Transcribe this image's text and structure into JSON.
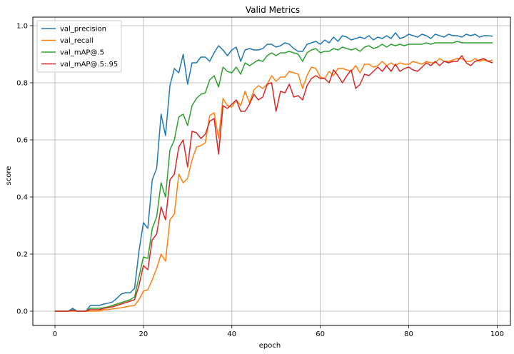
{
  "chart_data": {
    "type": "line",
    "title": "Valid Metrics",
    "xlabel": "epoch",
    "ylabel": "score",
    "xlim": [
      -5,
      103
    ],
    "ylim": [
      -0.05,
      1.03
    ],
    "grid": true,
    "legend_position": "top-left",
    "xticks": [
      0,
      20,
      40,
      60,
      80,
      100
    ],
    "xtick_labels": [
      "0",
      "20",
      "40",
      "60",
      "80",
      "100"
    ],
    "yticks": [
      0.0,
      0.2,
      0.4,
      0.6,
      0.8,
      1.0
    ],
    "ytick_labels": [
      "0.0",
      "0.2",
      "0.4",
      "0.6",
      "0.8",
      "1.0"
    ],
    "x": [
      0,
      1,
      2,
      3,
      4,
      5,
      6,
      7,
      8,
      9,
      10,
      11,
      12,
      13,
      14,
      15,
      16,
      17,
      18,
      19,
      20,
      21,
      22,
      23,
      24,
      25,
      26,
      27,
      28,
      29,
      30,
      31,
      32,
      33,
      34,
      35,
      36,
      37,
      38,
      39,
      40,
      41,
      42,
      43,
      44,
      45,
      46,
      47,
      48,
      49,
      50,
      51,
      52,
      53,
      54,
      55,
      56,
      57,
      58,
      59,
      60,
      61,
      62,
      63,
      64,
      65,
      66,
      67,
      68,
      69,
      70,
      71,
      72,
      73,
      74,
      75,
      76,
      77,
      78,
      79,
      80,
      81,
      82,
      83,
      84,
      85,
      86,
      87,
      88,
      89,
      90,
      91,
      92,
      93,
      94,
      95,
      96,
      97,
      98,
      99
    ],
    "series": [
      {
        "name": "val_precision",
        "color": "#1f77b4",
        "values": [
          0,
          0,
          0,
          0,
          0.01,
          0,
          0,
          0,
          0.02,
          0.02,
          0.02,
          0.025,
          0.028,
          0.032,
          0.045,
          0.06,
          0.065,
          0.064,
          0.08,
          0.21,
          0.31,
          0.29,
          0.46,
          0.5,
          0.69,
          0.615,
          0.79,
          0.85,
          0.835,
          0.9,
          0.795,
          0.87,
          0.87,
          0.89,
          0.89,
          0.875,
          0.905,
          0.93,
          0.915,
          0.895,
          0.915,
          0.925,
          0.875,
          0.915,
          0.92,
          0.915,
          0.915,
          0.92,
          0.935,
          0.935,
          0.925,
          0.93,
          0.94,
          0.935,
          0.92,
          0.91,
          0.91,
          0.935,
          0.94,
          0.945,
          0.935,
          0.95,
          0.94,
          0.96,
          0.945,
          0.965,
          0.96,
          0.95,
          0.955,
          0.96,
          0.955,
          0.965,
          0.95,
          0.96,
          0.955,
          0.965,
          0.955,
          0.975,
          0.955,
          0.96,
          0.97,
          0.965,
          0.96,
          0.97,
          0.965,
          0.955,
          0.97,
          0.965,
          0.96,
          0.97,
          0.965,
          0.965,
          0.96,
          0.97,
          0.965,
          0.97,
          0.96,
          0.965,
          0.965,
          0.963
        ]
      },
      {
        "name": "val_recall",
        "color": "#ff7f0e",
        "values": [
          0,
          0,
          0,
          0,
          0,
          0,
          0,
          0,
          0,
          0,
          0,
          0.005,
          0.005,
          0.008,
          0.01,
          0.012,
          0.015,
          0.018,
          0.02,
          0.04,
          0.07,
          0.075,
          0.11,
          0.15,
          0.2,
          0.175,
          0.32,
          0.34,
          0.48,
          0.45,
          0.465,
          0.53,
          0.575,
          0.58,
          0.59,
          0.685,
          0.695,
          0.605,
          0.745,
          0.72,
          0.715,
          0.74,
          0.72,
          0.77,
          0.73,
          0.775,
          0.79,
          0.78,
          0.795,
          0.825,
          0.805,
          0.82,
          0.82,
          0.84,
          0.835,
          0.83,
          0.78,
          0.825,
          0.855,
          0.85,
          0.82,
          0.815,
          0.84,
          0.825,
          0.85,
          0.85,
          0.845,
          0.84,
          0.86,
          0.835,
          0.865,
          0.865,
          0.855,
          0.86,
          0.875,
          0.86,
          0.87,
          0.86,
          0.87,
          0.865,
          0.865,
          0.875,
          0.87,
          0.865,
          0.875,
          0.87,
          0.87,
          0.885,
          0.875,
          0.875,
          0.88,
          0.885,
          0.885,
          0.875,
          0.875,
          0.885,
          0.875,
          0.88,
          0.875,
          0.88
        ]
      },
      {
        "name": "val_mAP@.5",
        "color": "#2ca02c",
        "values": [
          0,
          0,
          0,
          0,
          0.005,
          0,
          0,
          0,
          0.01,
          0.01,
          0.01,
          0.012,
          0.015,
          0.02,
          0.025,
          0.03,
          0.035,
          0.04,
          0.05,
          0.12,
          0.19,
          0.185,
          0.29,
          0.33,
          0.45,
          0.4,
          0.565,
          0.6,
          0.68,
          0.69,
          0.65,
          0.72,
          0.745,
          0.76,
          0.765,
          0.81,
          0.825,
          0.785,
          0.855,
          0.84,
          0.835,
          0.855,
          0.83,
          0.87,
          0.86,
          0.87,
          0.88,
          0.875,
          0.895,
          0.905,
          0.895,
          0.905,
          0.905,
          0.91,
          0.905,
          0.9,
          0.875,
          0.905,
          0.915,
          0.92,
          0.905,
          0.91,
          0.91,
          0.92,
          0.915,
          0.925,
          0.92,
          0.915,
          0.92,
          0.91,
          0.925,
          0.93,
          0.92,
          0.925,
          0.935,
          0.925,
          0.935,
          0.93,
          0.935,
          0.93,
          0.935,
          0.935,
          0.935,
          0.935,
          0.94,
          0.935,
          0.94,
          0.94,
          0.94,
          0.94,
          0.94,
          0.945,
          0.94,
          0.94,
          0.94,
          0.94,
          0.94,
          0.94,
          0.94,
          0.94
        ]
      },
      {
        "name": "val_mAP@.5:.95",
        "color": "#d62728",
        "values": [
          0,
          0,
          0,
          0,
          0.003,
          0,
          0,
          0,
          0.005,
          0.005,
          0.005,
          0.01,
          0.012,
          0.015,
          0.02,
          0.025,
          0.03,
          0.035,
          0.04,
          0.09,
          0.16,
          0.145,
          0.25,
          0.27,
          0.365,
          0.32,
          0.46,
          0.48,
          0.575,
          0.6,
          0.505,
          0.63,
          0.625,
          0.605,
          0.62,
          0.665,
          0.675,
          0.55,
          0.72,
          0.71,
          0.725,
          0.74,
          0.7,
          0.7,
          0.725,
          0.76,
          0.74,
          0.75,
          0.795,
          0.8,
          0.7,
          0.77,
          0.765,
          0.795,
          0.75,
          0.755,
          0.74,
          0.79,
          0.815,
          0.825,
          0.815,
          0.815,
          0.8,
          0.845,
          0.825,
          0.8,
          0.825,
          0.845,
          0.78,
          0.795,
          0.83,
          0.825,
          0.84,
          0.855,
          0.84,
          0.86,
          0.84,
          0.865,
          0.84,
          0.85,
          0.855,
          0.845,
          0.84,
          0.855,
          0.87,
          0.86,
          0.875,
          0.86,
          0.875,
          0.87,
          0.875,
          0.875,
          0.895,
          0.87,
          0.86,
          0.875,
          0.88,
          0.885,
          0.875,
          0.87
        ]
      }
    ]
  }
}
